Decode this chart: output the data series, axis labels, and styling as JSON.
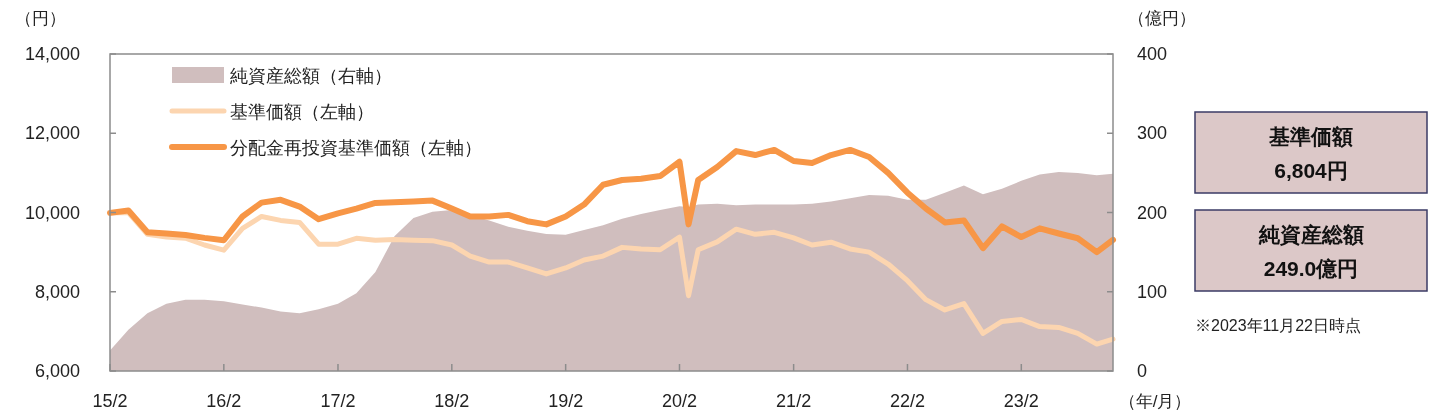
{
  "chart_data": {
    "type": "line",
    "x": [
      "2015-02",
      "2015-04",
      "2015-06",
      "2015-08",
      "2015-10",
      "2015-12",
      "2016-02",
      "2016-04",
      "2016-06",
      "2016-08",
      "2016-10",
      "2016-12",
      "2017-02",
      "2017-04",
      "2017-06",
      "2017-08",
      "2017-10",
      "2017-12",
      "2018-02",
      "2018-04",
      "2018-06",
      "2018-08",
      "2018-10",
      "2018-12",
      "2019-02",
      "2019-04",
      "2019-06",
      "2019-08",
      "2019-10",
      "2019-12",
      "2020-02",
      "2020-03",
      "2020-04",
      "2020-06",
      "2020-08",
      "2020-10",
      "2020-12",
      "2021-02",
      "2021-04",
      "2021-06",
      "2021-08",
      "2021-10",
      "2021-12",
      "2022-02",
      "2022-04",
      "2022-06",
      "2022-08",
      "2022-10",
      "2022-12",
      "2023-02",
      "2023-04",
      "2023-06",
      "2023-08",
      "2023-10",
      "2023-11-22"
    ],
    "series": [
      {
        "name": "純資産総額（右軸）",
        "type": "area",
        "axis": "y2",
        "color": "#d0bebe",
        "values": [
          26,
          52,
          73,
          85,
          90,
          90,
          88,
          84,
          80,
          75,
          73,
          78,
          85,
          98,
          125,
          170,
          193,
          201,
          203,
          197,
          190,
          182,
          177,
          173,
          172,
          178,
          184,
          192,
          198,
          203,
          208,
          207,
          210,
          211,
          209,
          210,
          210,
          210,
          211,
          214,
          218,
          222,
          221,
          216,
          216,
          225,
          234,
          223,
          230,
          240,
          248,
          251,
          250,
          247,
          249.0
        ]
      },
      {
        "name": "基準価額（左軸）",
        "type": "line",
        "color": "#fcd5b0",
        "values": [
          9990,
          10000,
          9450,
          9380,
          9350,
          9180,
          9050,
          9600,
          9900,
          9800,
          9750,
          9200,
          9200,
          9350,
          9300,
          9320,
          9300,
          9290,
          9180,
          8900,
          8750,
          8750,
          8600,
          8450,
          8600,
          8800,
          8900,
          9120,
          9080,
          9060,
          9380,
          7900,
          9060,
          9260,
          9580,
          9450,
          9500,
          9360,
          9180,
          9250,
          9080,
          9000,
          8700,
          8280,
          7800,
          7540,
          7700,
          6950,
          7250,
          7300,
          7120,
          7100,
          6950,
          6680,
          6804
        ]
      },
      {
        "name": "分配金再投資基準価額（左軸）",
        "type": "line",
        "color": "#f79646",
        "values": [
          9990,
          10050,
          9500,
          9470,
          9430,
          9360,
          9300,
          9900,
          10250,
          10320,
          10150,
          9830,
          9980,
          10100,
          10240,
          10260,
          10280,
          10300,
          10100,
          9900,
          9900,
          9940,
          9780,
          9700,
          9900,
          10200,
          10700,
          10820,
          10850,
          10920,
          11280,
          9700,
          10820,
          11150,
          11550,
          11450,
          11580,
          11300,
          11250,
          11450,
          11580,
          11400,
          11000,
          10500,
          10100,
          9750,
          9800,
          9100,
          9650,
          9380,
          9600,
          9470,
          9350,
          9000,
          9310
        ]
      }
    ],
    "xlim": [
      "2015-02",
      "2023-11-22"
    ],
    "xticks": [
      {
        "value": "2015-02",
        "label": "15/2"
      },
      {
        "value": "2016-02",
        "label": "16/2"
      },
      {
        "value": "2017-02",
        "label": "17/2"
      },
      {
        "value": "2018-02",
        "label": "18/2"
      },
      {
        "value": "2019-02",
        "label": "19/2"
      },
      {
        "value": "2020-02",
        "label": "20/2"
      },
      {
        "value": "2021-02",
        "label": "21/2"
      },
      {
        "value": "2022-02",
        "label": "22/2"
      },
      {
        "value": "2023-02",
        "label": "23/2"
      }
    ],
    "ylim": [
      6000,
      14000
    ],
    "yticks": [
      {
        "value": 6000,
        "label": "6,000"
      },
      {
        "value": 8000,
        "label": "8,000"
      },
      {
        "value": 10000,
        "label": "10,000"
      },
      {
        "value": 12000,
        "label": "12,000"
      },
      {
        "value": 14000,
        "label": "14,000"
      }
    ],
    "y2lim": [
      0,
      400
    ],
    "y2ticks": [
      0,
      100,
      200,
      300,
      400
    ],
    "ylabel": "（円）",
    "y2label": "（億円）",
    "xlabel": "（年/月）",
    "legend": "top left",
    "annotations": [
      "基準価額",
      "6,804円",
      "純資産総額",
      "249.0億円",
      "※2023年11月22日時点"
    ]
  }
}
